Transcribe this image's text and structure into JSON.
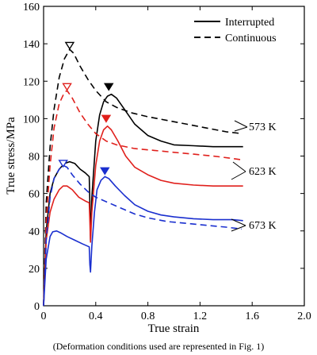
{
  "chart_data": {
    "type": "line",
    "xlabel": "True strain",
    "ylabel": "True stress/MPa",
    "xlim": [
      0,
      2.0
    ],
    "ylim": [
      0,
      160
    ],
    "x_ticks": [
      "0",
      "0.4",
      "0.8",
      "1.2",
      "1.6",
      "2.0"
    ],
    "y_ticks": [
      "0",
      "20",
      "40",
      "60",
      "80",
      "100",
      "120",
      "140",
      "160"
    ],
    "legend": {
      "placement": "top-right",
      "entries": [
        {
          "label": "Interrupted",
          "style": "solid"
        },
        {
          "label": "Continuous",
          "style": "dashed"
        }
      ]
    },
    "annotations": [
      {
        "label": "573 K",
        "color": "#000000"
      },
      {
        "label": "623 K",
        "color": "#e0201c"
      },
      {
        "label": "673 K",
        "color": "#1a2fcf"
      }
    ],
    "caption": "(Deformation conditions used are represented in Fig. 1)",
    "series": [
      {
        "group": "573 K",
        "kind": "continuous",
        "color": "#000000",
        "style": "dashed",
        "points": [
          [
            0,
            0
          ],
          [
            0.02,
            55
          ],
          [
            0.05,
            85
          ],
          [
            0.08,
            105
          ],
          [
            0.12,
            122
          ],
          [
            0.16,
            132
          ],
          [
            0.2,
            137
          ],
          [
            0.23,
            135
          ],
          [
            0.28,
            128
          ],
          [
            0.34,
            121
          ],
          [
            0.4,
            115
          ],
          [
            0.48,
            109
          ],
          [
            0.56,
            106
          ],
          [
            0.68,
            103
          ],
          [
            0.8,
            101
          ],
          [
            0.95,
            99
          ],
          [
            1.1,
            97
          ],
          [
            1.25,
            95
          ],
          [
            1.4,
            93
          ],
          [
            1.52,
            92
          ]
        ]
      },
      {
        "group": "573 K",
        "kind": "interrupted",
        "color": "#000000",
        "style": "solid",
        "points": [
          [
            0,
            0
          ],
          [
            0.02,
            40
          ],
          [
            0.05,
            60
          ],
          [
            0.08,
            68
          ],
          [
            0.12,
            73
          ],
          [
            0.16,
            76
          ],
          [
            0.2,
            77
          ],
          [
            0.24,
            76
          ],
          [
            0.28,
            73
          ],
          [
            0.32,
            71
          ],
          [
            0.35,
            69
          ],
          [
            0.355,
            55
          ],
          [
            0.36,
            35
          ],
          [
            0.37,
            58
          ],
          [
            0.4,
            88
          ],
          [
            0.43,
            102
          ],
          [
            0.46,
            109
          ],
          [
            0.49,
            112
          ],
          [
            0.52,
            113
          ],
          [
            0.56,
            111
          ],
          [
            0.62,
            105
          ],
          [
            0.7,
            97
          ],
          [
            0.8,
            91
          ],
          [
            0.9,
            88
          ],
          [
            1.0,
            86
          ],
          [
            1.15,
            85.5
          ],
          [
            1.3,
            85
          ],
          [
            1.45,
            85
          ],
          [
            1.53,
            85
          ]
        ]
      },
      {
        "group": "623 K",
        "kind": "continuous",
        "color": "#e0201c",
        "style": "dashed",
        "points": [
          [
            0,
            0
          ],
          [
            0.02,
            45
          ],
          [
            0.05,
            75
          ],
          [
            0.08,
            95
          ],
          [
            0.12,
            108
          ],
          [
            0.16,
            114
          ],
          [
            0.18,
            115
          ],
          [
            0.22,
            111
          ],
          [
            0.28,
            103
          ],
          [
            0.34,
            97
          ],
          [
            0.4,
            92
          ],
          [
            0.48,
            88
          ],
          [
            0.56,
            86
          ],
          [
            0.7,
            84
          ],
          [
            0.85,
            83
          ],
          [
            1.0,
            82
          ],
          [
            1.15,
            81
          ],
          [
            1.3,
            80
          ],
          [
            1.42,
            79
          ],
          [
            1.52,
            78
          ]
        ]
      },
      {
        "group": "623 K",
        "kind": "interrupted",
        "color": "#e0201c",
        "style": "solid",
        "points": [
          [
            0,
            0
          ],
          [
            0.02,
            35
          ],
          [
            0.05,
            50
          ],
          [
            0.08,
            57
          ],
          [
            0.12,
            62
          ],
          [
            0.15,
            64
          ],
          [
            0.18,
            64
          ],
          [
            0.22,
            62
          ],
          [
            0.27,
            58
          ],
          [
            0.32,
            56
          ],
          [
            0.35,
            55
          ],
          [
            0.355,
            45
          ],
          [
            0.36,
            34
          ],
          [
            0.37,
            50
          ],
          [
            0.4,
            75
          ],
          [
            0.43,
            88
          ],
          [
            0.46,
            94
          ],
          [
            0.49,
            96
          ],
          [
            0.52,
            94
          ],
          [
            0.57,
            88
          ],
          [
            0.63,
            80
          ],
          [
            0.7,
            74
          ],
          [
            0.8,
            70
          ],
          [
            0.9,
            67
          ],
          [
            1.0,
            65.5
          ],
          [
            1.15,
            64.5
          ],
          [
            1.3,
            64
          ],
          [
            1.45,
            64
          ],
          [
            1.53,
            64
          ]
        ]
      },
      {
        "group": "673 K",
        "kind": "continuous",
        "color": "#1a2fcf",
        "style": "dashed",
        "points": [
          [
            0,
            0
          ],
          [
            0.02,
            35
          ],
          [
            0.05,
            58
          ],
          [
            0.08,
            68
          ],
          [
            0.12,
            73
          ],
          [
            0.15,
            75
          ],
          [
            0.18,
            74
          ],
          [
            0.22,
            70
          ],
          [
            0.28,
            65
          ],
          [
            0.34,
            61
          ],
          [
            0.4,
            58
          ],
          [
            0.5,
            55
          ],
          [
            0.6,
            52
          ],
          [
            0.7,
            49
          ],
          [
            0.8,
            47
          ],
          [
            0.95,
            45
          ],
          [
            1.1,
            44
          ],
          [
            1.25,
            43
          ],
          [
            1.4,
            42
          ],
          [
            1.52,
            41
          ]
        ]
      },
      {
        "group": "673 K",
        "kind": "interrupted",
        "color": "#1a2fcf",
        "style": "solid",
        "points": [
          [
            0,
            0
          ],
          [
            0.02,
            25
          ],
          [
            0.05,
            37
          ],
          [
            0.07,
            39.5
          ],
          [
            0.1,
            40
          ],
          [
            0.13,
            39
          ],
          [
            0.18,
            37
          ],
          [
            0.24,
            35
          ],
          [
            0.3,
            33
          ],
          [
            0.35,
            31.5
          ],
          [
            0.355,
            22
          ],
          [
            0.36,
            18
          ],
          [
            0.37,
            32
          ],
          [
            0.39,
            50
          ],
          [
            0.41,
            62
          ],
          [
            0.44,
            67
          ],
          [
            0.47,
            69
          ],
          [
            0.5,
            68
          ],
          [
            0.55,
            64
          ],
          [
            0.62,
            59
          ],
          [
            0.7,
            54
          ],
          [
            0.8,
            50.5
          ],
          [
            0.9,
            48.5
          ],
          [
            1.0,
            47.5
          ],
          [
            1.15,
            46.5
          ],
          [
            1.3,
            46
          ],
          [
            1.45,
            46
          ],
          [
            1.53,
            45.5
          ]
        ]
      }
    ],
    "peak_markers": [
      {
        "x": 0.2,
        "y": 139,
        "color": "#000000",
        "filled": false
      },
      {
        "x": 0.5,
        "y": 117,
        "color": "#000000",
        "filled": true
      },
      {
        "x": 0.18,
        "y": 117,
        "color": "#e0201c",
        "filled": false
      },
      {
        "x": 0.48,
        "y": 100,
        "color": "#e0201c",
        "filled": true
      },
      {
        "x": 0.15,
        "y": 76,
        "color": "#1a2fcf",
        "filled": false
      },
      {
        "x": 0.47,
        "y": 72,
        "color": "#1a2fcf",
        "filled": true
      }
    ]
  }
}
